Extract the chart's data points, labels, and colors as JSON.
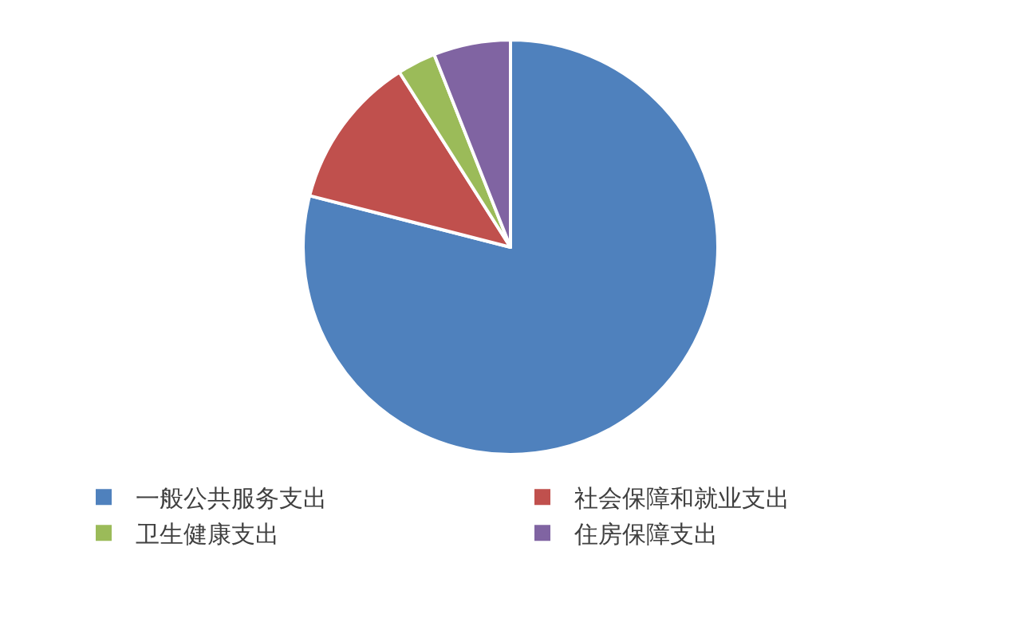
{
  "chart_data": {
    "type": "pie",
    "categories": [
      "一般公共服务支出",
      "社会保障和就业支出",
      "卫生健康支出",
      "住房保障支出"
    ],
    "values": [
      79,
      12,
      3,
      6
    ],
    "colors": [
      "#4f81bd",
      "#c0504d",
      "#9bbb59",
      "#8064a2"
    ],
    "legend": "bottom"
  }
}
